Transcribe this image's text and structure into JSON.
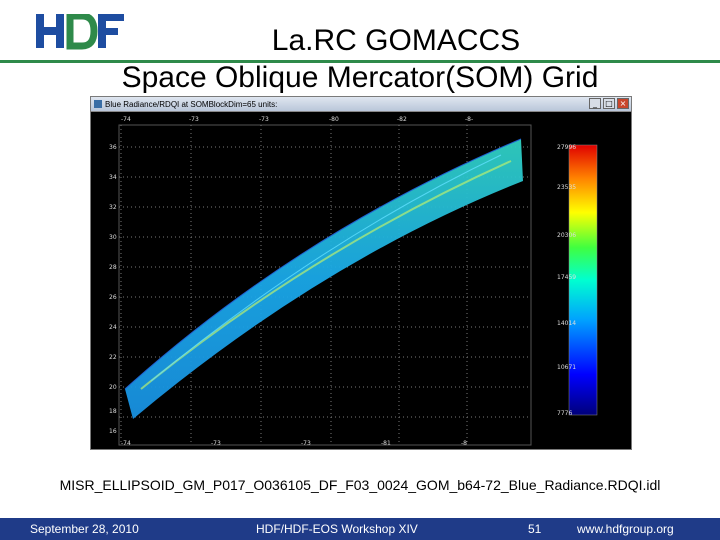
{
  "slide": {
    "title_line1": "La.RC GOMACCS",
    "title_line2": "Space Oblique Mercator(SOM) Grid",
    "filename_caption": "MISR_ELLIPSOID_GM_P017_O036105_DF_F03_0024_GOM_b64-72_Blue_Radiance.RDQI.idl"
  },
  "window": {
    "title": "Blue Radiance/RDQI at SOMBlockDim=65 units:",
    "minimize_icon": "minimize-icon",
    "maximize_icon": "maximize-icon",
    "close_icon": "close-icon"
  },
  "plot": {
    "top_ticks": [
      "-74",
      "-73",
      "-73",
      "-80",
      "-82",
      "-8-"
    ],
    "bottom_ticks": [
      "-74",
      "-73",
      "-73",
      "-81",
      "-8"
    ],
    "left_ticks": [
      "36",
      "34",
      "32",
      "30",
      "28",
      "26",
      "24",
      "22",
      "20",
      "18",
      "16"
    ],
    "colorbar_ticks": [
      "27996",
      "23535",
      "20306",
      "17459",
      "14014",
      "10671",
      "7776"
    ]
  },
  "footer": {
    "date": "September 28, 2010",
    "workshop": "HDF/HDF-EOS Workshop XIV",
    "page": "51",
    "url": "www.hdfgroup.org"
  },
  "colors": {
    "footer_bg": "#1f3b88",
    "logo_green": "#2e8a4a",
    "logo_blue": "#1e4da1"
  }
}
